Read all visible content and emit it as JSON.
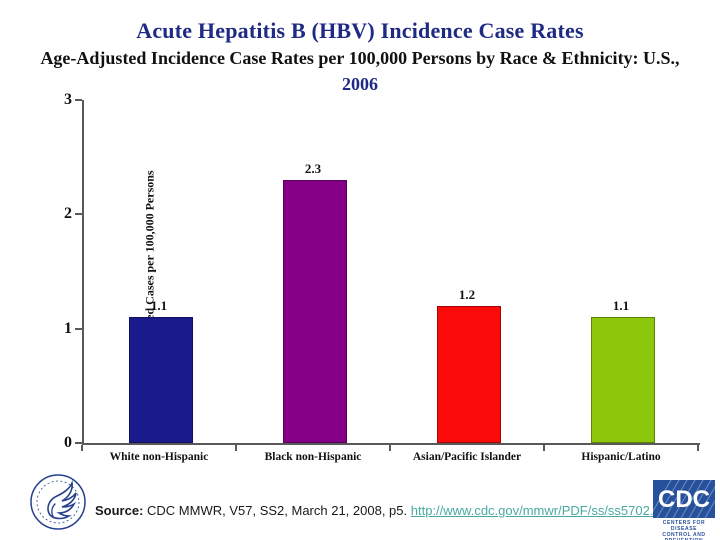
{
  "slide": {
    "title": "Acute Hepatitis B (HBV) Incidence Case Rates",
    "subtitle_line1": "Age-Adjusted Incidence Case Rates per 100,000 Persons by Race & Ethnicity: U.S.,",
    "subtitle_line2": "2006"
  },
  "chart_data": {
    "type": "bar",
    "title": "Acute Hepatitis B (HBV) Incidence Case Rates, Age-Adjusted, by Race & Ethnicity: U.S., 2006",
    "categories": [
      "White non-Hispanic",
      "Black non-Hispanic",
      "Asian/Pacific Islander",
      "Hispanic/Latino"
    ],
    "values": [
      1.1,
      2.3,
      1.2,
      1.1
    ],
    "value_labels": [
      "1.1",
      "2.3",
      "1.2",
      "1.1"
    ],
    "bar_colors": [
      "#1a1a8c",
      "#850087",
      "#fb0a0a",
      "#8cc70b"
    ],
    "xlabel": "",
    "ylabel": "Age-Adjusted Cases per 100,000 Persons",
    "yticks": [
      0,
      1,
      2,
      3
    ],
    "ylim": [
      0,
      3
    ],
    "grid": false,
    "legend": "none"
  },
  "footer": {
    "source_label": "Source:",
    "source_text": " CDC MMWR,  V57, SS2, March 21, 2008, p5. ",
    "source_link": "http://www.cdc.gov/mmwr/PDF/ss/ss5702.pdf",
    "cdc_logo_text": "CDC",
    "cdc_tagline_line1": "CENTERS FOR DISEASE",
    "cdc_tagline_line2": "CONTROL AND PREVENTION",
    "hhs_logo_alt": "Department of Health and Human Services seal"
  },
  "colors": {
    "title_navy": "#1f2a85",
    "axis_gray": "#595959",
    "link_teal": "#4aa8a2",
    "cdc_blue": "#28519c"
  }
}
